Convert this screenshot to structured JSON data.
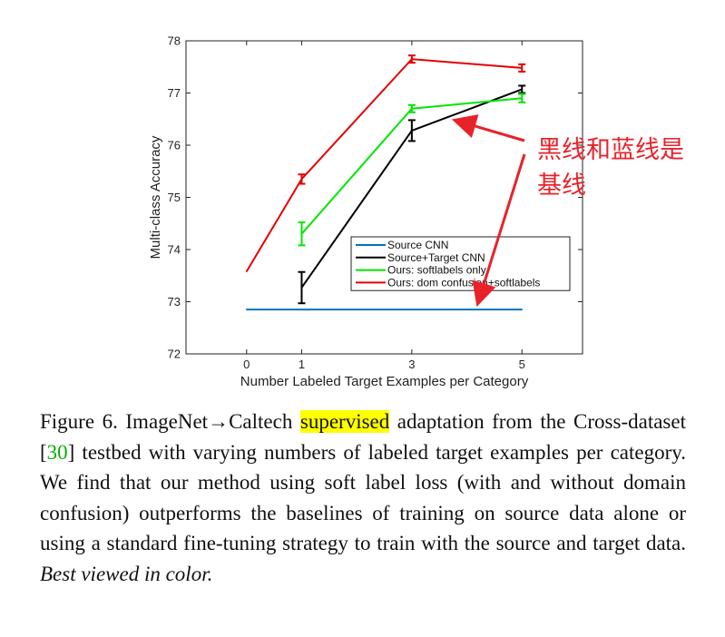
{
  "chart_data": {
    "type": "line",
    "xlabel": "Number Labeled Target Examples per Category",
    "ylabel": "Multi-class Accuracy",
    "xlim": [
      -1.1,
      6.1
    ],
    "ylim": [
      72,
      78
    ],
    "xticks": [
      0,
      1,
      3,
      5
    ],
    "yticks": [
      72,
      73,
      74,
      75,
      76,
      77,
      78
    ],
    "grid": false,
    "legend_position": "lower-right",
    "series": [
      {
        "name": "Source CNN",
        "color": "#0072bd",
        "x": [
          0,
          5
        ],
        "y": [
          72.85,
          72.85
        ],
        "err": [
          0,
          0
        ]
      },
      {
        "name": "Source+Target CNN",
        "color": "#000000",
        "x": [
          1,
          3,
          5
        ],
        "y": [
          73.27,
          76.28,
          77.07
        ],
        "err": [
          0.3,
          0.2,
          0.07
        ]
      },
      {
        "name": "Ours: softlabels only",
        "color": "#00e600",
        "x": [
          1,
          3,
          5
        ],
        "y": [
          74.3,
          76.7,
          76.9
        ],
        "err": [
          0.22,
          0.07,
          0.08
        ]
      },
      {
        "name": "Ours: dom confusion+softlabels",
        "color": "#e60000",
        "x": [
          0,
          1,
          3,
          5
        ],
        "y": [
          73.58,
          75.35,
          77.65,
          77.48
        ],
        "err": [
          0,
          0.09,
          0.07,
          0.07
        ]
      }
    ]
  },
  "annotation": {
    "text_line1": "黑线和蓝线是",
    "text_line2": "基线",
    "color": "#e8222a"
  },
  "caption": {
    "p1": "Figure 6. ImageNet→Caltech ",
    "highlight": "supervised",
    "p2": " adaptation from the Cross-dataset [",
    "ref": "30",
    "p3": "] testbed with varying numbers of labeled target examples per category.  We find that our method using soft label loss (with and without domain confusion) outperforms the baselines of training on source data alone or using a standard fine-tuning strategy to train with the source and target data. ",
    "italic": "Best viewed in color."
  }
}
